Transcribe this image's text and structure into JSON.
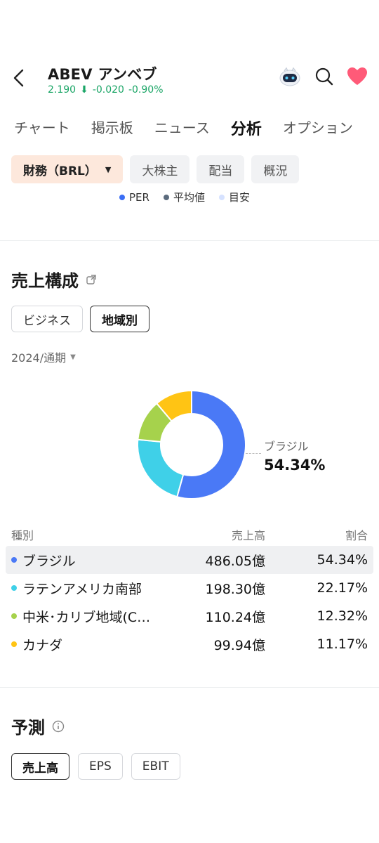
{
  "header": {
    "ticker": "ABEV",
    "name": "アンベブ",
    "price": "2.190",
    "change": "-0.020",
    "change_pct": "-0.90%",
    "down_color": "#1aa566"
  },
  "tabs": [
    "チャート",
    "掲示板",
    "ニュース",
    "分析",
    "オプション"
  ],
  "active_tab": "分析",
  "subtabs": {
    "financials": "財務（BRL）",
    "shareholders": "大株主",
    "dividends": "配当",
    "overview": "概況"
  },
  "legend": [
    {
      "label": "PER",
      "color": "#3b6ef5"
    },
    {
      "label": "平均値",
      "color": "#5b6b7d"
    },
    {
      "label": "目安",
      "color": "#d6e2ff"
    }
  ],
  "revenue": {
    "title": "売上構成",
    "seg_business": "ビジネス",
    "seg_region": "地域別",
    "period": "2024/通期",
    "callout_name": "ブラジル",
    "callout_value": "54.34%",
    "table_headers": {
      "type": "種別",
      "revenue": "売上高",
      "share": "割合"
    }
  },
  "chart_data": {
    "type": "pie",
    "donut": true,
    "categories": [
      "ブラジル",
      "ラテンアメリカ南部",
      "中米･カリブ地域(C…",
      "カナダ"
    ],
    "revenue_labels": [
      "486.05億",
      "198.30億",
      "110.24億",
      "99.94億"
    ],
    "share_labels": [
      "54.34%",
      "22.17%",
      "12.32%",
      "11.17%"
    ],
    "values": [
      54.34,
      22.17,
      12.32,
      11.17
    ],
    "colors": [
      "#4a79f6",
      "#3fd0e8",
      "#a6d24c",
      "#ffc414"
    ]
  },
  "forecast": {
    "title": "予測",
    "tabs": [
      "売上高",
      "EPS",
      "EBIT"
    ]
  }
}
